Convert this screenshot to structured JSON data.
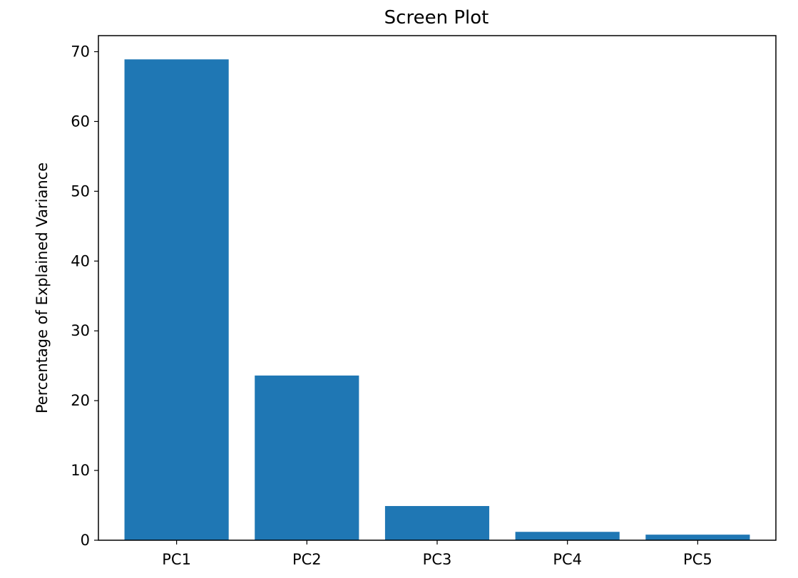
{
  "chart_data": {
    "type": "bar",
    "title": "Screen Plot",
    "xlabel": "",
    "ylabel": "Percentage of Explained Variance",
    "categories": [
      "PC1",
      "PC2",
      "PC3",
      "PC4",
      "PC5"
    ],
    "values": [
      68.9,
      23.6,
      4.9,
      1.2,
      0.8
    ],
    "ylim": [
      0,
      72.3
    ],
    "yticks": [
      0,
      10,
      20,
      30,
      40,
      50,
      60,
      70
    ],
    "grid": false,
    "bar_color": "#1f77b4"
  }
}
